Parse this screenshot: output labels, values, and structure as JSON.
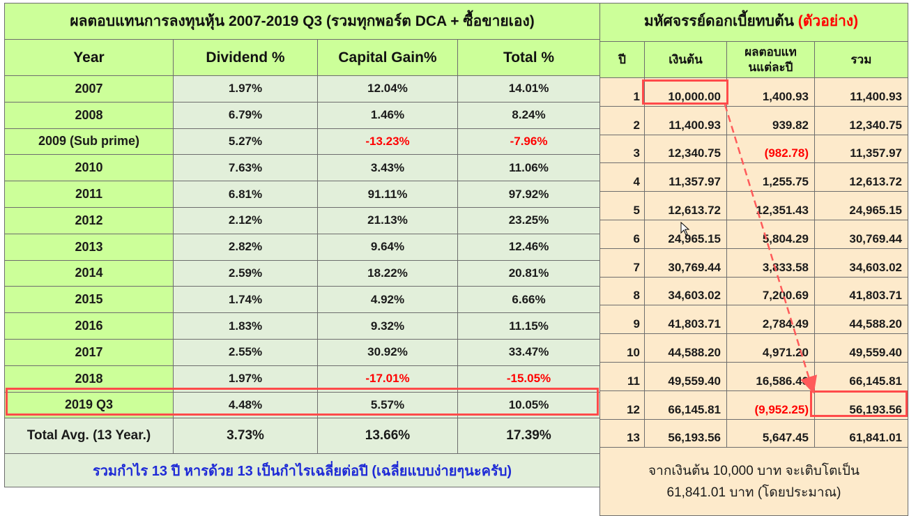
{
  "left_table": {
    "title": "ผลตอบแทนการลงทุนหุ้น  2007-2019 Q3 (รวมทุกพอร์ต DCA + ซื้อขายเอง)",
    "headers": [
      "Year",
      "Dividend %",
      "Capital Gain%",
      "Total %"
    ],
    "rows": [
      {
        "year": "2007",
        "dividend": "1.97%",
        "capital_gain": "12.04%",
        "total": "14.01%"
      },
      {
        "year": "2008",
        "dividend": "6.79%",
        "capital_gain": "1.46%",
        "total": "8.24%"
      },
      {
        "year": "2009 (Sub prime)",
        "dividend": "5.27%",
        "capital_gain": "-13.23%",
        "total": "-7.96%"
      },
      {
        "year": "2010",
        "dividend": "7.63%",
        "capital_gain": "3.43%",
        "total": "11.06%"
      },
      {
        "year": "2011",
        "dividend": "6.81%",
        "capital_gain": "91.11%",
        "total": "97.92%"
      },
      {
        "year": "2012",
        "dividend": "2.12%",
        "capital_gain": "21.13%",
        "total": "23.25%"
      },
      {
        "year": "2013",
        "dividend": "2.82%",
        "capital_gain": "9.64%",
        "total": "12.46%"
      },
      {
        "year": "2014",
        "dividend": "2.59%",
        "capital_gain": "18.22%",
        "total": "20.81%"
      },
      {
        "year": "2015",
        "dividend": "1.74%",
        "capital_gain": "4.92%",
        "total": "6.66%"
      },
      {
        "year": "2016",
        "dividend": "1.83%",
        "capital_gain": "9.32%",
        "total": "11.15%"
      },
      {
        "year": "2017",
        "dividend": "2.55%",
        "capital_gain": "30.92%",
        "total": "33.47%"
      },
      {
        "year": "2018",
        "dividend": "1.97%",
        "capital_gain": "-17.01%",
        "total": "-15.05%"
      },
      {
        "year": "2019 Q3",
        "dividend": "4.48%",
        "capital_gain": "5.57%",
        "total": "10.05%"
      }
    ],
    "total": {
      "label": "Total Avg.  (13 Year.)",
      "dividend": "3.73%",
      "capital_gain": "13.66%",
      "total": "17.39%"
    },
    "note": "รวมกำไร 13 ปี  หารด้วย 13 เป็นกำไรเฉลี่ยต่อปี (เฉลี่ยแบบง่ายๆนะครับ)"
  },
  "right_table": {
    "title": "มหัศจรรย์ดอกเบี้ยทบต้น",
    "title_highlight": "(ตัวอย่าง)",
    "headers": {
      "year": "ปี",
      "principal": "เงินต้น",
      "return_line1": "ผลตอบแท",
      "return_line2": "นแต่ละปี",
      "sum": "รวม"
    },
    "rows": [
      {
        "n": "1",
        "principal": "10,000.00",
        "return": "1,400.93",
        "sum": "11,400.93"
      },
      {
        "n": "2",
        "principal": "11,400.93",
        "return": "939.82",
        "sum": "12,340.75"
      },
      {
        "n": "3",
        "principal": "12,340.75",
        "return": "(982.78)",
        "sum": "11,357.97"
      },
      {
        "n": "4",
        "principal": "11,357.97",
        "return": "1,255.75",
        "sum": "12,613.72"
      },
      {
        "n": "5",
        "principal": "12,613.72",
        "return": "12,351.43",
        "sum": "24,965.15"
      },
      {
        "n": "6",
        "principal": "24,965.15",
        "return": "5,804.29",
        "sum": "30,769.44"
      },
      {
        "n": "7",
        "principal": "30,769.44",
        "return": "3,833.58",
        "sum": "34,603.02"
      },
      {
        "n": "8",
        "principal": "34,603.02",
        "return": "7,200.69",
        "sum": "41,803.71"
      },
      {
        "n": "9",
        "principal": "41,803.71",
        "return": "2,784.49",
        "sum": "44,588.20"
      },
      {
        "n": "10",
        "principal": "44,588.20",
        "return": "4,971.20",
        "sum": "49,559.40"
      },
      {
        "n": "11",
        "principal": "49,559.40",
        "return": "16,586.40",
        "sum": "66,145.81"
      },
      {
        "n": "12",
        "principal": "66,145.81",
        "return": "(9,952.25)",
        "sum": "56,193.56"
      },
      {
        "n": "13",
        "principal": "56,193.56",
        "return": "5,647.45",
        "sum": "61,841.01"
      }
    ],
    "summary_line1": "จากเงินต้น 10,000 บาท จะเติบโตเป็น",
    "summary_line2": "61,841.01 บาท (โดยประมาณ)"
  },
  "colors": {
    "header_green": "#ccff99",
    "value_green": "#e2efda",
    "peach": "#fdeacb",
    "negative": "#ff0000",
    "note_blue": "#1f2bd6",
    "highlight": "#ff4a4a"
  }
}
